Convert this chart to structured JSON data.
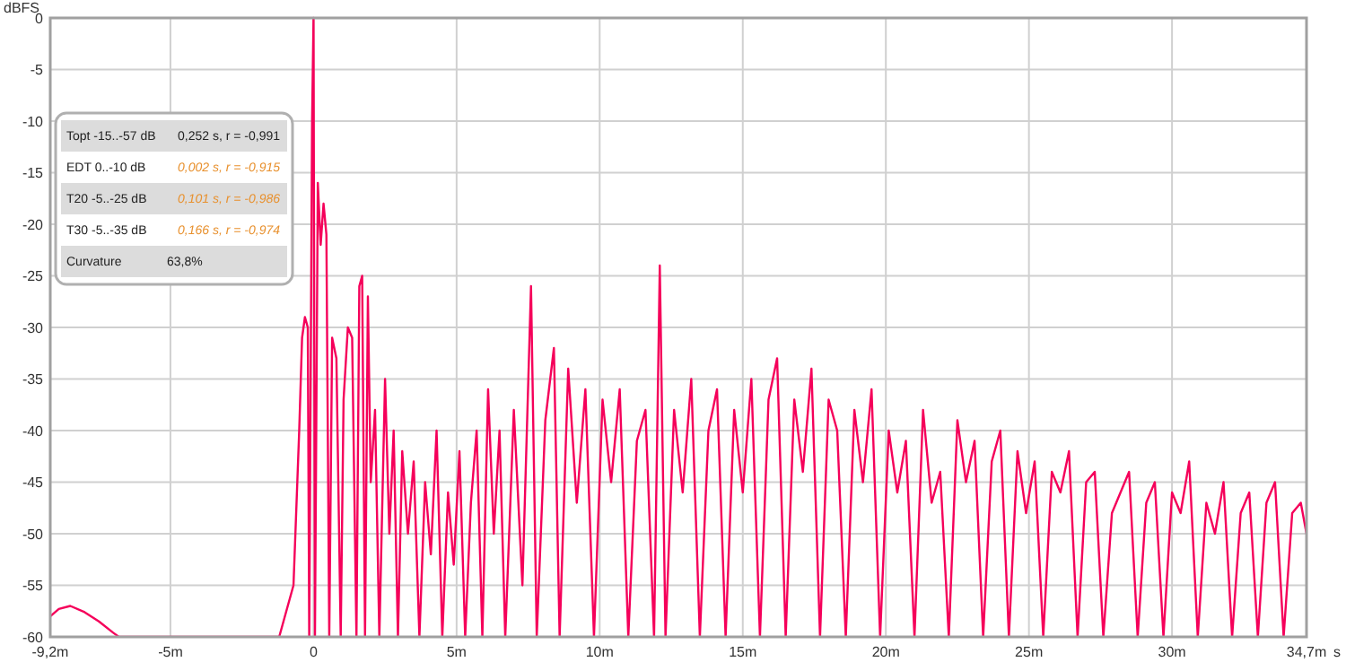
{
  "chart_data": {
    "type": "line",
    "ylabel": "dBFS",
    "xlabel": "s",
    "xlim": [
      -9.2,
      34.7
    ],
    "ylim": [
      -60,
      0
    ],
    "xticks": [
      {
        "value": -9.2,
        "label": "-9,2m"
      },
      {
        "value": -5,
        "label": "-5m"
      },
      0,
      {
        "value": 5,
        "label": "5m"
      },
      {
        "value": 10,
        "label": "10m"
      },
      {
        "value": 15,
        "label": "15m"
      },
      {
        "value": 20,
        "label": "20m"
      },
      {
        "value": 25,
        "label": "25m"
      },
      {
        "value": 30,
        "label": "30m"
      },
      {
        "value": 34.7,
        "label": "34,7m"
      }
    ],
    "yticks": [
      0,
      -5,
      -10,
      -15,
      -20,
      -25,
      -30,
      -35,
      -40,
      -45,
      -50,
      -55,
      -60
    ],
    "grid": true,
    "marker": "none",
    "line_style": "solid",
    "annotations": [
      "Topt -15..-57 dB",
      "0,252 s,  r = -0,991",
      "EDT  0..-10 dB",
      "0,002 s, r = -0,915",
      "T20 -5..-25 dB",
      "0,101 s, r = -0,986",
      "T30 -5..-35 dB",
      "0,166 s, r = -0,974",
      "Curvature",
      "63,8%"
    ],
    "series": [
      {
        "color": "#f5005a",
        "x": [
          -9.2,
          -8.9,
          -8.5,
          -8.0,
          -7.5,
          -7.0,
          -6.8,
          -1.2,
          -1.0,
          -0.7,
          -0.5,
          -0.4,
          -0.3,
          -0.2,
          -0.15,
          -0.05,
          0,
          0.05,
          0.15,
          0.25,
          0.35,
          0.45,
          0.55,
          0.65,
          0.8,
          0.95,
          1.05,
          1.2,
          1.35,
          1.5,
          1.6,
          1.7,
          1.8,
          1.9,
          2.0,
          2.15,
          2.3,
          2.5,
          2.65,
          2.8,
          2.95,
          3.1,
          3.3,
          3.5,
          3.7,
          3.9,
          4.1,
          4.3,
          4.5,
          4.7,
          4.9,
          5.1,
          5.3,
          5.5,
          5.7,
          5.9,
          6.1,
          6.3,
          6.5,
          6.7,
          7.0,
          7.3,
          7.6,
          7.8,
          8.1,
          8.4,
          8.6,
          8.9,
          9.2,
          9.5,
          9.8,
          10.1,
          10.4,
          10.7,
          11.0,
          11.3,
          11.6,
          11.9,
          12.1,
          12.3,
          12.6,
          12.9,
          13.2,
          13.5,
          13.8,
          14.1,
          14.4,
          14.7,
          15.0,
          15.3,
          15.6,
          15.9,
          16.2,
          16.5,
          16.8,
          17.1,
          17.4,
          17.7,
          18.0,
          18.3,
          18.6,
          18.9,
          19.2,
          19.5,
          19.8,
          20.1,
          20.4,
          20.7,
          21.0,
          21.3,
          21.6,
          21.9,
          22.2,
          22.5,
          22.8,
          23.1,
          23.4,
          23.7,
          24.0,
          24.3,
          24.6,
          24.9,
          25.2,
          25.5,
          25.8,
          26.1,
          26.4,
          26.7,
          27.0,
          27.3,
          27.6,
          27.9,
          28.2,
          28.5,
          28.8,
          29.1,
          29.4,
          29.7,
          30.0,
          30.3,
          30.6,
          30.9,
          31.2,
          31.5,
          31.8,
          32.1,
          32.4,
          32.7,
          33.0,
          33.3,
          33.6,
          33.9,
          34.2,
          34.5,
          34.7
        ],
        "values": [
          -58,
          -57.3,
          -57,
          -57.6,
          -58.5,
          -59.6,
          -60,
          -60,
          -58,
          -55,
          -40,
          -31,
          -29,
          -30,
          -60,
          -10,
          0,
          -60,
          -16,
          -22,
          -18,
          -21,
          -60,
          -31,
          -33,
          -60,
          -37,
          -30,
          -31,
          -60,
          -26,
          -25,
          -60,
          -27,
          -45,
          -38,
          -60,
          -35,
          -50,
          -40,
          -60,
          -42,
          -50,
          -43,
          -60,
          -45,
          -52,
          -40,
          -60,
          -46,
          -53,
          -42,
          -60,
          -47,
          -40,
          -60,
          -36,
          -50,
          -40,
          -60,
          -38,
          -55,
          -26,
          -60,
          -39,
          -32,
          -60,
          -34,
          -47,
          -36,
          -60,
          -37,
          -45,
          -36,
          -60,
          -41,
          -38,
          -60,
          -24,
          -60,
          -38,
          -46,
          -35,
          -60,
          -40,
          -36,
          -60,
          -38,
          -46,
          -35,
          -60,
          -37,
          -33,
          -60,
          -37,
          -44,
          -34,
          -60,
          -37,
          -40,
          -60,
          -38,
          -45,
          -36,
          -60,
          -40,
          -46,
          -41,
          -60,
          -38,
          -47,
          -44,
          -60,
          -39,
          -45,
          -41,
          -60,
          -43,
          -40,
          -60,
          -42,
          -48,
          -43,
          -60,
          -44,
          -46,
          -42,
          -60,
          -45,
          -44,
          -60,
          -48,
          -46,
          -44,
          -60,
          -47,
          -45,
          -60,
          -46,
          -48,
          -43,
          -60,
          -47,
          -50,
          -45,
          -60,
          -48,
          -46,
          -60,
          -47,
          -45,
          -60,
          -48,
          -47,
          -50
        ]
      }
    ]
  }
}
